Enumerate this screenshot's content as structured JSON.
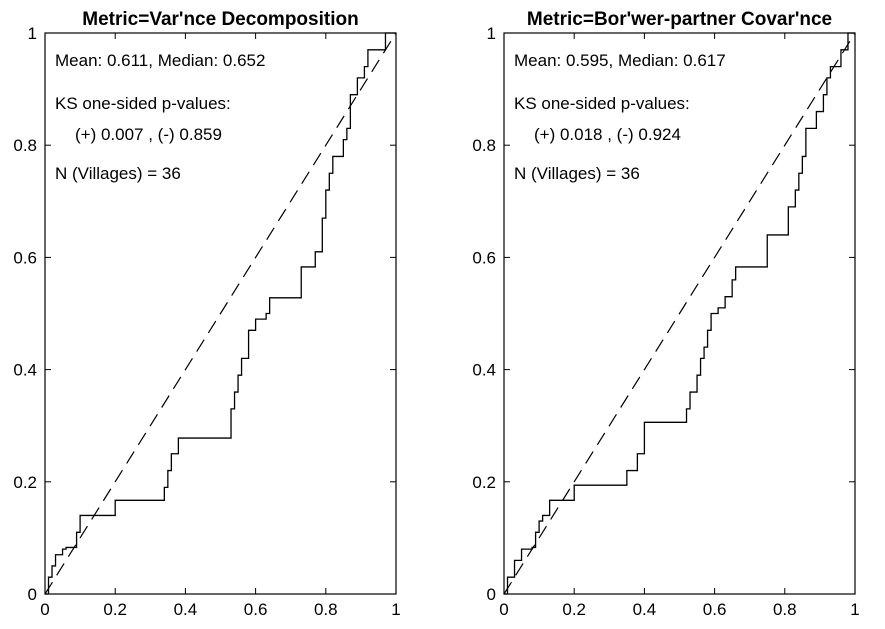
{
  "chart_data": [
    {
      "type": "line",
      "title": "Metric=Var'nce Decomposition",
      "xlabel": "",
      "ylabel": "",
      "xlim": [
        0,
        1
      ],
      "ylim": [
        0,
        1
      ],
      "xticks": [
        0,
        0.2,
        0.4,
        0.6,
        0.8,
        1
      ],
      "xtick_labels": [
        "0",
        "0.2",
        "0.4",
        "0.6",
        "0.8",
        "1"
      ],
      "yticks": [
        0,
        0.2,
        0.4,
        0.6,
        0.8,
        1
      ],
      "ytick_labels": [
        "0",
        "0.2",
        "0.4",
        "0.6",
        "0.8",
        "1"
      ],
      "annotations": [
        "Mean: 0.611,  Median: 0.652",
        "KS one-sided p-values:",
        "(+) 0.007 ,  (-) 0.859",
        "N (Villages) = 36"
      ],
      "series": [
        {
          "style": "solid",
          "x": [
            0,
            0.01,
            0.01,
            0.02,
            0.02,
            0.03,
            0.03,
            0.05,
            0.05,
            0.06,
            0.06,
            0.09,
            0.09,
            0.1,
            0.1,
            0.2,
            0.2,
            0.34,
            0.34,
            0.35,
            0.35,
            0.36,
            0.36,
            0.38,
            0.38,
            0.4,
            0.4,
            0.53,
            0.53,
            0.54,
            0.54,
            0.55,
            0.55,
            0.56,
            0.56,
            0.58,
            0.58,
            0.6,
            0.6,
            0.63,
            0.63,
            0.64,
            0.64,
            0.73,
            0.73,
            0.77,
            0.77,
            0.79,
            0.79,
            0.8,
            0.8,
            0.81,
            0.81,
            0.82,
            0.82,
            0.85,
            0.85,
            0.86,
            0.86,
            0.87,
            0.87,
            0.89,
            0.89,
            0.91,
            0.91,
            0.92,
            0.92,
            0.95,
            0.95,
            0.97,
            0.97,
            1.0,
            1.0
          ],
          "y": [
            0,
            0,
            0.03,
            0.03,
            0.05,
            0.05,
            0.07,
            0.07,
            0.08,
            0.08,
            0.083,
            0.083,
            0.11,
            0.11,
            0.14,
            0.14,
            0.167,
            0.167,
            0.19,
            0.19,
            0.22,
            0.22,
            0.25,
            0.25,
            0.278,
            0.278,
            0.278,
            0.278,
            0.33,
            0.33,
            0.36,
            0.36,
            0.39,
            0.39,
            0.42,
            0.42,
            0.47,
            0.47,
            0.49,
            0.49,
            0.5,
            0.5,
            0.528,
            0.528,
            0.583,
            0.583,
            0.61,
            0.61,
            0.67,
            0.67,
            0.72,
            0.72,
            0.75,
            0.75,
            0.78,
            0.78,
            0.81,
            0.81,
            0.83,
            0.83,
            0.89,
            0.89,
            0.92,
            0.92,
            0.94,
            0.94,
            0.97,
            0.97,
            0.97,
            0.97,
            1.0,
            1.0,
            1.0
          ]
        },
        {
          "style": "dashed",
          "x": [
            0,
            1
          ],
          "y": [
            0,
            1
          ]
        }
      ]
    },
    {
      "type": "line",
      "title": "Metric=Bor'wer-partner Covar'nce",
      "xlabel": "",
      "ylabel": "",
      "xlim": [
        0,
        1
      ],
      "ylim": [
        0,
        1
      ],
      "xticks": [
        0,
        0.2,
        0.4,
        0.6,
        0.8,
        1
      ],
      "xtick_labels": [
        "0",
        "0.2",
        "0.4",
        "0.6",
        "0.8",
        "1"
      ],
      "yticks": [
        0,
        0.2,
        0.4,
        0.6,
        0.8,
        1
      ],
      "ytick_labels": [
        "0",
        "0.2",
        "0.4",
        "0.6",
        "0.8",
        "1"
      ],
      "annotations": [
        "Mean: 0.595,  Median: 0.617",
        "KS one-sided p-values:",
        "(+) 0.018 ,  (-) 0.924",
        "N (Villages) = 36"
      ],
      "series": [
        {
          "style": "solid",
          "x": [
            0,
            0.01,
            0.01,
            0.03,
            0.03,
            0.05,
            0.05,
            0.08,
            0.08,
            0.09,
            0.09,
            0.1,
            0.1,
            0.11,
            0.11,
            0.13,
            0.13,
            0.2,
            0.2,
            0.22,
            0.22,
            0.25,
            0.25,
            0.35,
            0.35,
            0.36,
            0.36,
            0.38,
            0.38,
            0.4,
            0.4,
            0.44,
            0.44,
            0.52,
            0.52,
            0.53,
            0.53,
            0.55,
            0.55,
            0.56,
            0.56,
            0.57,
            0.57,
            0.58,
            0.58,
            0.59,
            0.59,
            0.61,
            0.61,
            0.63,
            0.63,
            0.65,
            0.65,
            0.66,
            0.66,
            0.75,
            0.75,
            0.76,
            0.76,
            0.81,
            0.81,
            0.83,
            0.83,
            0.84,
            0.84,
            0.85,
            0.85,
            0.86,
            0.86,
            0.89,
            0.89,
            0.91,
            0.91,
            0.92,
            0.92,
            0.93,
            0.93,
            0.96,
            0.96,
            0.98,
            0.98,
            1.0
          ],
          "y": [
            0,
            0,
            0.03,
            0.03,
            0.06,
            0.06,
            0.08,
            0.08,
            0.083,
            0.083,
            0.11,
            0.11,
            0.13,
            0.13,
            0.14,
            0.14,
            0.167,
            0.167,
            0.194,
            0.194,
            0.194,
            0.194,
            0.194,
            0.194,
            0.22,
            0.22,
            0.22,
            0.22,
            0.25,
            0.25,
            0.306,
            0.306,
            0.306,
            0.306,
            0.33,
            0.33,
            0.36,
            0.36,
            0.39,
            0.39,
            0.42,
            0.42,
            0.44,
            0.44,
            0.47,
            0.47,
            0.5,
            0.5,
            0.51,
            0.51,
            0.53,
            0.53,
            0.56,
            0.56,
            0.583,
            0.583,
            0.64,
            0.64,
            0.64,
            0.64,
            0.69,
            0.69,
            0.72,
            0.72,
            0.75,
            0.75,
            0.78,
            0.78,
            0.83,
            0.83,
            0.86,
            0.86,
            0.89,
            0.89,
            0.92,
            0.92,
            0.94,
            0.94,
            0.97,
            0.97,
            1.0,
            1.0
          ]
        },
        {
          "style": "dashed",
          "x": [
            0,
            1
          ],
          "y": [
            0,
            1
          ]
        }
      ]
    }
  ]
}
